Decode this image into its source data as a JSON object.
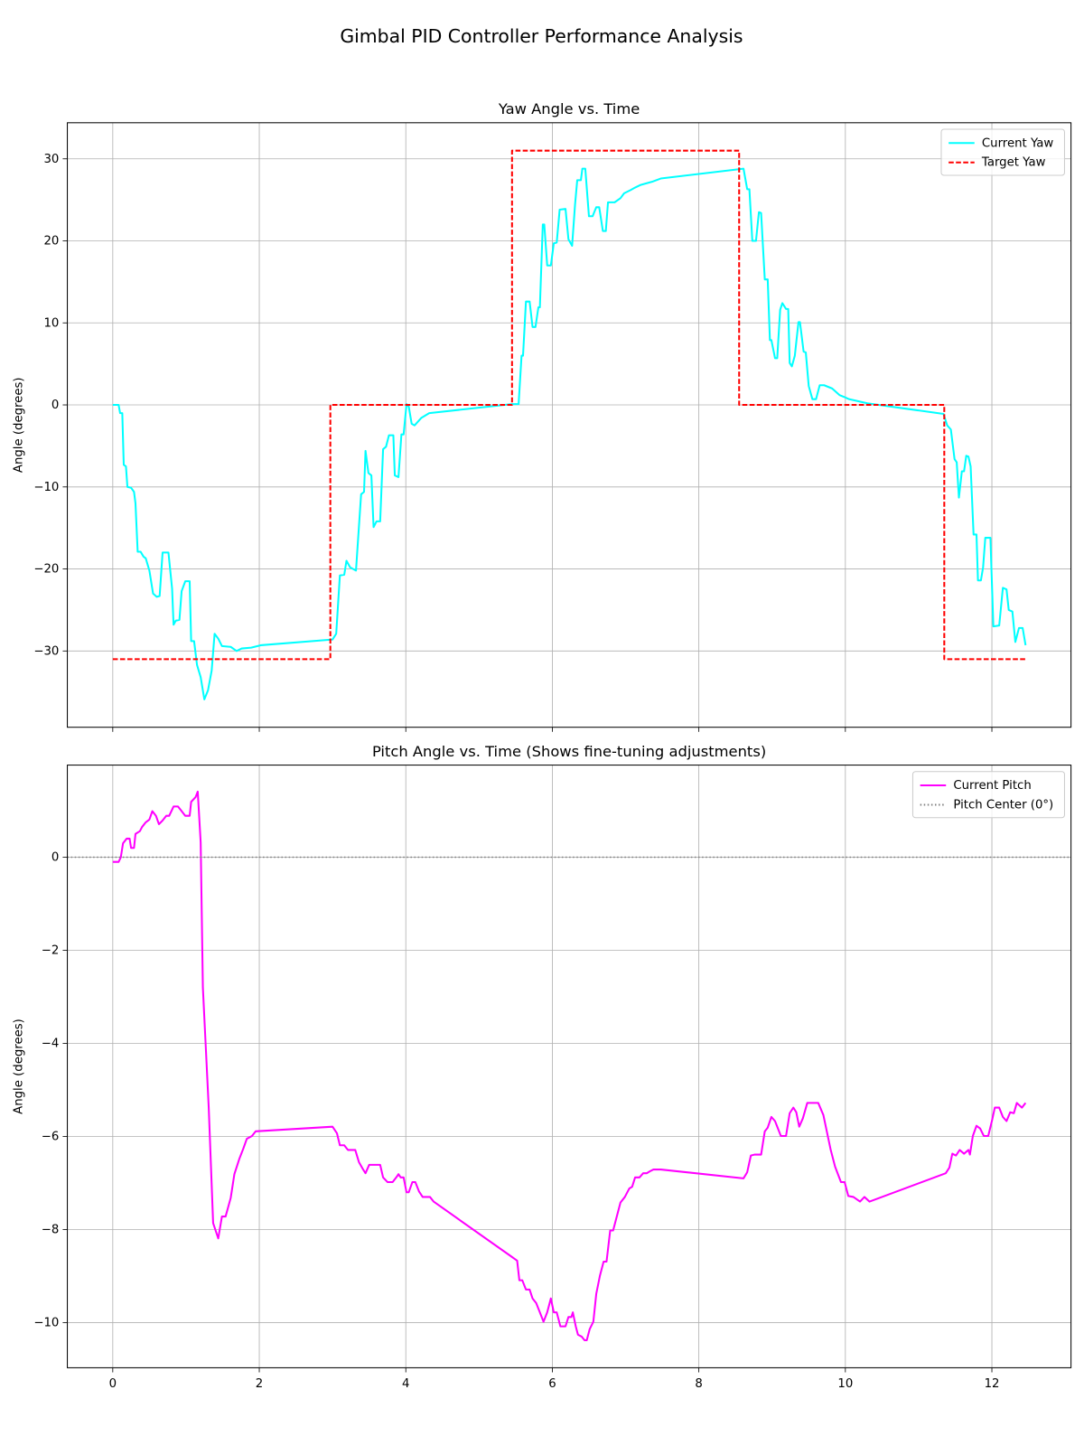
{
  "title": "Gimbal PID Controller Performance Analysis",
  "chart_data": [
    {
      "type": "line",
      "title": "Yaw Angle vs. Time",
      "ylabel": "Angle (degrees)",
      "ylim": [
        -39.3,
        34.4
      ],
      "yticks": [
        {
          "value": -30,
          "label": "−30"
        },
        {
          "value": -20,
          "label": "−20"
        },
        {
          "value": -10,
          "label": "−10"
        },
        0,
        10,
        20,
        30
      ],
      "grid": true,
      "legend": "upper right",
      "series": [
        {
          "name": "Current Yaw",
          "color": "#00ffff",
          "style": "solid",
          "x": [
            0,
            0.08,
            0.1,
            0.13,
            0.15,
            0.18,
            0.2,
            0.25,
            0.29,
            0.31,
            0.34,
            0.38,
            0.42,
            0.45,
            0.5,
            0.55,
            0.6,
            0.64,
            0.68,
            0.76,
            0.81,
            0.83,
            0.86,
            0.91,
            0.94,
            0.99,
            1.05,
            1.07,
            1.11,
            1.15,
            1.2,
            1.25,
            1.3,
            1.35,
            1.39,
            1.44,
            1.49,
            1.61,
            1.69,
            1.76,
            1.89,
            2.02,
            3.0,
            3.05,
            3.1,
            3.16,
            3.19,
            3.24,
            3.32,
            3.35,
            3.39,
            3.43,
            3.45,
            3.49,
            3.53,
            3.56,
            3.6,
            3.65,
            3.69,
            3.73,
            3.77,
            3.83,
            3.85,
            3.9,
            3.94,
            3.97,
            4.01,
            4.04,
            4.08,
            4.12,
            4.21,
            4.32,
            5.45,
            5.54,
            5.58,
            5.6,
            5.64,
            5.69,
            5.73,
            5.77,
            5.81,
            5.83,
            5.87,
            5.89,
            5.93,
            5.98,
            6.02,
            6.06,
            6.1,
            6.18,
            6.22,
            6.27,
            6.31,
            6.34,
            6.39,
            6.41,
            6.45,
            6.5,
            6.55,
            6.6,
            6.64,
            6.69,
            6.73,
            6.76,
            6.85,
            6.93,
            6.98,
            7.07,
            7.13,
            7.2,
            7.36,
            7.48,
            8.61,
            8.66,
            8.69,
            8.73,
            8.78,
            8.82,
            8.85,
            8.9,
            8.94,
            8.97,
            8.99,
            9.04,
            9.07,
            9.11,
            9.14,
            9.19,
            9.22,
            9.24,
            9.27,
            9.31,
            9.36,
            9.38,
            9.43,
            9.46,
            9.5,
            9.55,
            9.6,
            9.65,
            9.71,
            9.82,
            9.92,
            10.0,
            10.05,
            10.3,
            11.34,
            11.39,
            11.44,
            11.49,
            11.52,
            11.55,
            11.59,
            11.62,
            11.65,
            11.68,
            11.71,
            11.75,
            11.79,
            11.81,
            11.85,
            11.88,
            11.91,
            11.98,
            12.02,
            12.1,
            12.15,
            12.2,
            12.23,
            12.28,
            12.32,
            12.37,
            12.42,
            12.46
          ],
          "values": [
            0,
            0,
            -1.0,
            -1.0,
            -7.3,
            -7.5,
            -10.0,
            -10.1,
            -10.6,
            -12.0,
            -17.9,
            -17.9,
            -18.5,
            -18.7,
            -20.2,
            -23.0,
            -23.4,
            -23.3,
            -18.0,
            -18.0,
            -22.4,
            -26.8,
            -26.3,
            -26.2,
            -22.7,
            -21.5,
            -21.5,
            -28.8,
            -28.8,
            -31.7,
            -33.2,
            -35.9,
            -34.8,
            -32.4,
            -27.9,
            -28.5,
            -29.4,
            -29.5,
            -30.0,
            -29.7,
            -29.6,
            -29.3,
            -28.6,
            -27.9,
            -20.8,
            -20.7,
            -19.0,
            -19.8,
            -20.2,
            -16.2,
            -10.9,
            -10.6,
            -5.6,
            -8.3,
            -8.6,
            -14.9,
            -14.2,
            -14.2,
            -5.4,
            -5.1,
            -3.7,
            -3.7,
            -8.6,
            -8.8,
            -3.6,
            -3.6,
            0.1,
            -0.2,
            -2.3,
            -2.5,
            -1.6,
            -1.0,
            0.1,
            0.1,
            6.0,
            6.0,
            12.6,
            12.6,
            9.5,
            9.5,
            11.9,
            11.9,
            22.0,
            22.0,
            17.0,
            17.0,
            19.7,
            19.8,
            23.8,
            23.9,
            20.2,
            19.4,
            24.4,
            27.4,
            27.4,
            28.8,
            28.8,
            23.0,
            23.0,
            24.1,
            24.1,
            21.2,
            21.2,
            24.7,
            24.7,
            25.2,
            25.8,
            26.2,
            26.5,
            26.8,
            27.2,
            27.6,
            28.8,
            26.3,
            26.3,
            20.0,
            20.0,
            23.5,
            23.4,
            15.3,
            15.3,
            7.9,
            7.9,
            5.7,
            5.7,
            11.6,
            12.4,
            11.7,
            11.7,
            5.1,
            4.7,
            6.0,
            10.1,
            10.1,
            6.5,
            6.4,
            2.3,
            0.7,
            0.7,
            2.4,
            2.4,
            2.0,
            1.2,
            0.9,
            0.7,
            0.2,
            -1.1,
            -2.5,
            -3.0,
            -6.6,
            -7.0,
            -11.3,
            -8.1,
            -8.1,
            -6.2,
            -6.3,
            -7.5,
            -15.8,
            -15.8,
            -21.4,
            -21.4,
            -19.8,
            -16.2,
            -16.2,
            -27.0,
            -26.9,
            -22.3,
            -22.5,
            -25.0,
            -25.2,
            -28.9,
            -27.2,
            -27.2,
            -29.3
          ]
        },
        {
          "name": "Target Yaw",
          "color": "#ff0000",
          "style": "dashed",
          "x": [
            0,
            2.97,
            2.97,
            5.45,
            5.45,
            8.55,
            8.55,
            11.35,
            11.35,
            12.46
          ],
          "values": [
            -31,
            -31,
            0,
            0,
            31,
            31,
            0,
            0,
            -31,
            -31
          ]
        }
      ]
    },
    {
      "type": "line",
      "title": "Pitch Angle vs. Time (Shows fine-tuning adjustments)",
      "ylabel": "Angle (degrees)",
      "xlim": [
        -0.62,
        13.08
      ],
      "xticks": [
        0,
        2,
        4,
        6,
        8,
        10,
        12
      ],
      "ylim": [
        -10.97,
        1.98
      ],
      "yticks": [
        {
          "value": -10,
          "label": "−10"
        },
        {
          "value": -8,
          "label": "−8"
        },
        {
          "value": -6,
          "label": "−6"
        },
        {
          "value": -4,
          "label": "−4"
        },
        {
          "value": -2,
          "label": "−2"
        },
        0
      ],
      "grid": true,
      "legend": "upper right",
      "series": [
        {
          "name": "Current Pitch",
          "color": "#ff00ff",
          "style": "solid",
          "x": [
            0,
            0.08,
            0.11,
            0.14,
            0.19,
            0.23,
            0.25,
            0.29,
            0.31,
            0.37,
            0.4,
            0.45,
            0.5,
            0.54,
            0.59,
            0.63,
            0.68,
            0.73,
            0.77,
            0.83,
            0.89,
            0.94,
            0.99,
            1.05,
            1.07,
            1.13,
            1.16,
            1.2,
            1.23,
            1.31,
            1.37,
            1.44,
            1.49,
            1.54,
            1.61,
            1.66,
            1.73,
            1.78,
            1.83,
            1.9,
            1.95,
            3.0,
            3.06,
            3.1,
            3.16,
            3.21,
            3.31,
            3.36,
            3.41,
            3.45,
            3.5,
            3.65,
            3.69,
            3.75,
            3.82,
            3.87,
            3.9,
            3.93,
            3.97,
            4.01,
            4.04,
            4.09,
            4.13,
            4.18,
            4.23,
            4.33,
            4.38,
            5.45,
            5.52,
            5.55,
            5.59,
            5.64,
            5.69,
            5.73,
            5.78,
            5.83,
            5.88,
            5.93,
            5.98,
            6.02,
            6.06,
            6.11,
            6.18,
            6.22,
            6.26,
            6.28,
            6.32,
            6.35,
            6.4,
            6.44,
            6.47,
            6.51,
            6.56,
            6.6,
            6.65,
            6.7,
            6.74,
            6.79,
            6.83,
            6.88,
            6.93,
            6.99,
            7.05,
            7.09,
            7.13,
            7.19,
            7.24,
            7.29,
            7.33,
            7.38,
            7.48,
            8.61,
            8.66,
            8.71,
            8.76,
            8.85,
            8.9,
            8.94,
            8.99,
            9.04,
            9.12,
            9.19,
            9.24,
            9.29,
            9.33,
            9.37,
            9.42,
            9.48,
            9.63,
            9.7,
            9.8,
            9.86,
            9.94,
            9.99,
            10.04,
            10.11,
            10.2,
            10.26,
            10.33,
            11.37,
            11.42,
            11.46,
            11.51,
            11.56,
            11.62,
            11.68,
            11.7,
            11.74,
            11.79,
            11.84,
            11.89,
            11.95,
            12.0,
            12.04,
            12.1,
            12.15,
            12.2,
            12.25,
            12.3,
            12.34,
            12.41,
            12.46
          ],
          "values": [
            -0.1,
            -0.1,
            0,
            0.3,
            0.4,
            0.4,
            0.2,
            0.2,
            0.5,
            0.56,
            0.65,
            0.75,
            0.81,
            0.99,
            0.89,
            0.71,
            0.79,
            0.89,
            0.89,
            1.09,
            1.09,
            0.99,
            0.89,
            0.89,
            1.19,
            1.29,
            1.41,
            0.32,
            -2.8,
            -5.38,
            -7.86,
            -8.19,
            -7.72,
            -7.72,
            -7.32,
            -6.81,
            -6.47,
            -6.27,
            -6.05,
            -5.99,
            -5.89,
            -5.79,
            -5.93,
            -6.19,
            -6.19,
            -6.29,
            -6.29,
            -6.55,
            -6.69,
            -6.79,
            -6.61,
            -6.61,
            -6.88,
            -6.98,
            -6.98,
            -6.88,
            -6.81,
            -6.88,
            -6.88,
            -7.2,
            -7.2,
            -6.98,
            -6.98,
            -7.18,
            -7.3,
            -7.3,
            -7.4,
            -8.59,
            -8.67,
            -9.09,
            -9.09,
            -9.29,
            -9.29,
            -9.48,
            -9.58,
            -9.78,
            -9.98,
            -9.78,
            -9.48,
            -9.78,
            -9.78,
            -10.08,
            -10.08,
            -9.88,
            -9.88,
            -9.78,
            -10.08,
            -10.26,
            -10.3,
            -10.38,
            -10.38,
            -10.14,
            -9.98,
            -9.38,
            -8.99,
            -8.69,
            -8.69,
            -8.02,
            -8.02,
            -7.72,
            -7.42,
            -7.3,
            -7.12,
            -7.08,
            -6.88,
            -6.88,
            -6.79,
            -6.79,
            -6.75,
            -6.71,
            -6.71,
            -6.9,
            -6.77,
            -6.41,
            -6.39,
            -6.39,
            -5.89,
            -5.81,
            -5.58,
            -5.67,
            -5.99,
            -5.99,
            -5.5,
            -5.38,
            -5.48,
            -5.79,
            -5.61,
            -5.28,
            -5.28,
            -5.54,
            -6.29,
            -6.65,
            -6.98,
            -6.98,
            -7.28,
            -7.3,
            -7.4,
            -7.3,
            -7.4,
            -6.79,
            -6.67,
            -6.37,
            -6.41,
            -6.29,
            -6.37,
            -6.29,
            -6.39,
            -5.99,
            -5.77,
            -5.83,
            -5.99,
            -5.99,
            -5.67,
            -5.38,
            -5.38,
            -5.58,
            -5.67,
            -5.48,
            -5.5,
            -5.28,
            -5.38,
            -5.28
          ]
        }
      ],
      "hlines": [
        {
          "name": "Pitch Center (0°)",
          "color": "#808080",
          "style": "dotted",
          "value": 0
        }
      ]
    }
  ]
}
